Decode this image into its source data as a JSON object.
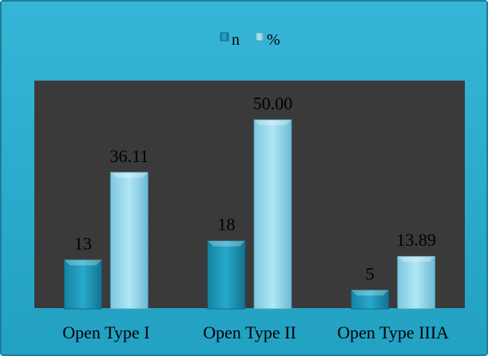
{
  "chart_data": {
    "type": "bar",
    "categories": [
      "Open Type I",
      "Open Type II",
      "Open Type IIIA"
    ],
    "series": [
      {
        "name": "n",
        "values": [
          13,
          18,
          5
        ],
        "labels": [
          "13",
          "18",
          "5"
        ]
      },
      {
        "name": "%",
        "values": [
          36.11,
          50.0,
          13.89
        ],
        "labels": [
          "36.11",
          "50.00",
          "13.89"
        ]
      }
    ],
    "ylim": [
      0,
      60
    ],
    "grid": false,
    "legend_position": "top-center",
    "colors": {
      "frame": "#2aaccc",
      "frame_border": "#1a7f98",
      "plot_area": "#3a3a3a",
      "n_series": "#1b93b4",
      "pct_series": "#8fd3ea",
      "text": "#000000"
    }
  }
}
